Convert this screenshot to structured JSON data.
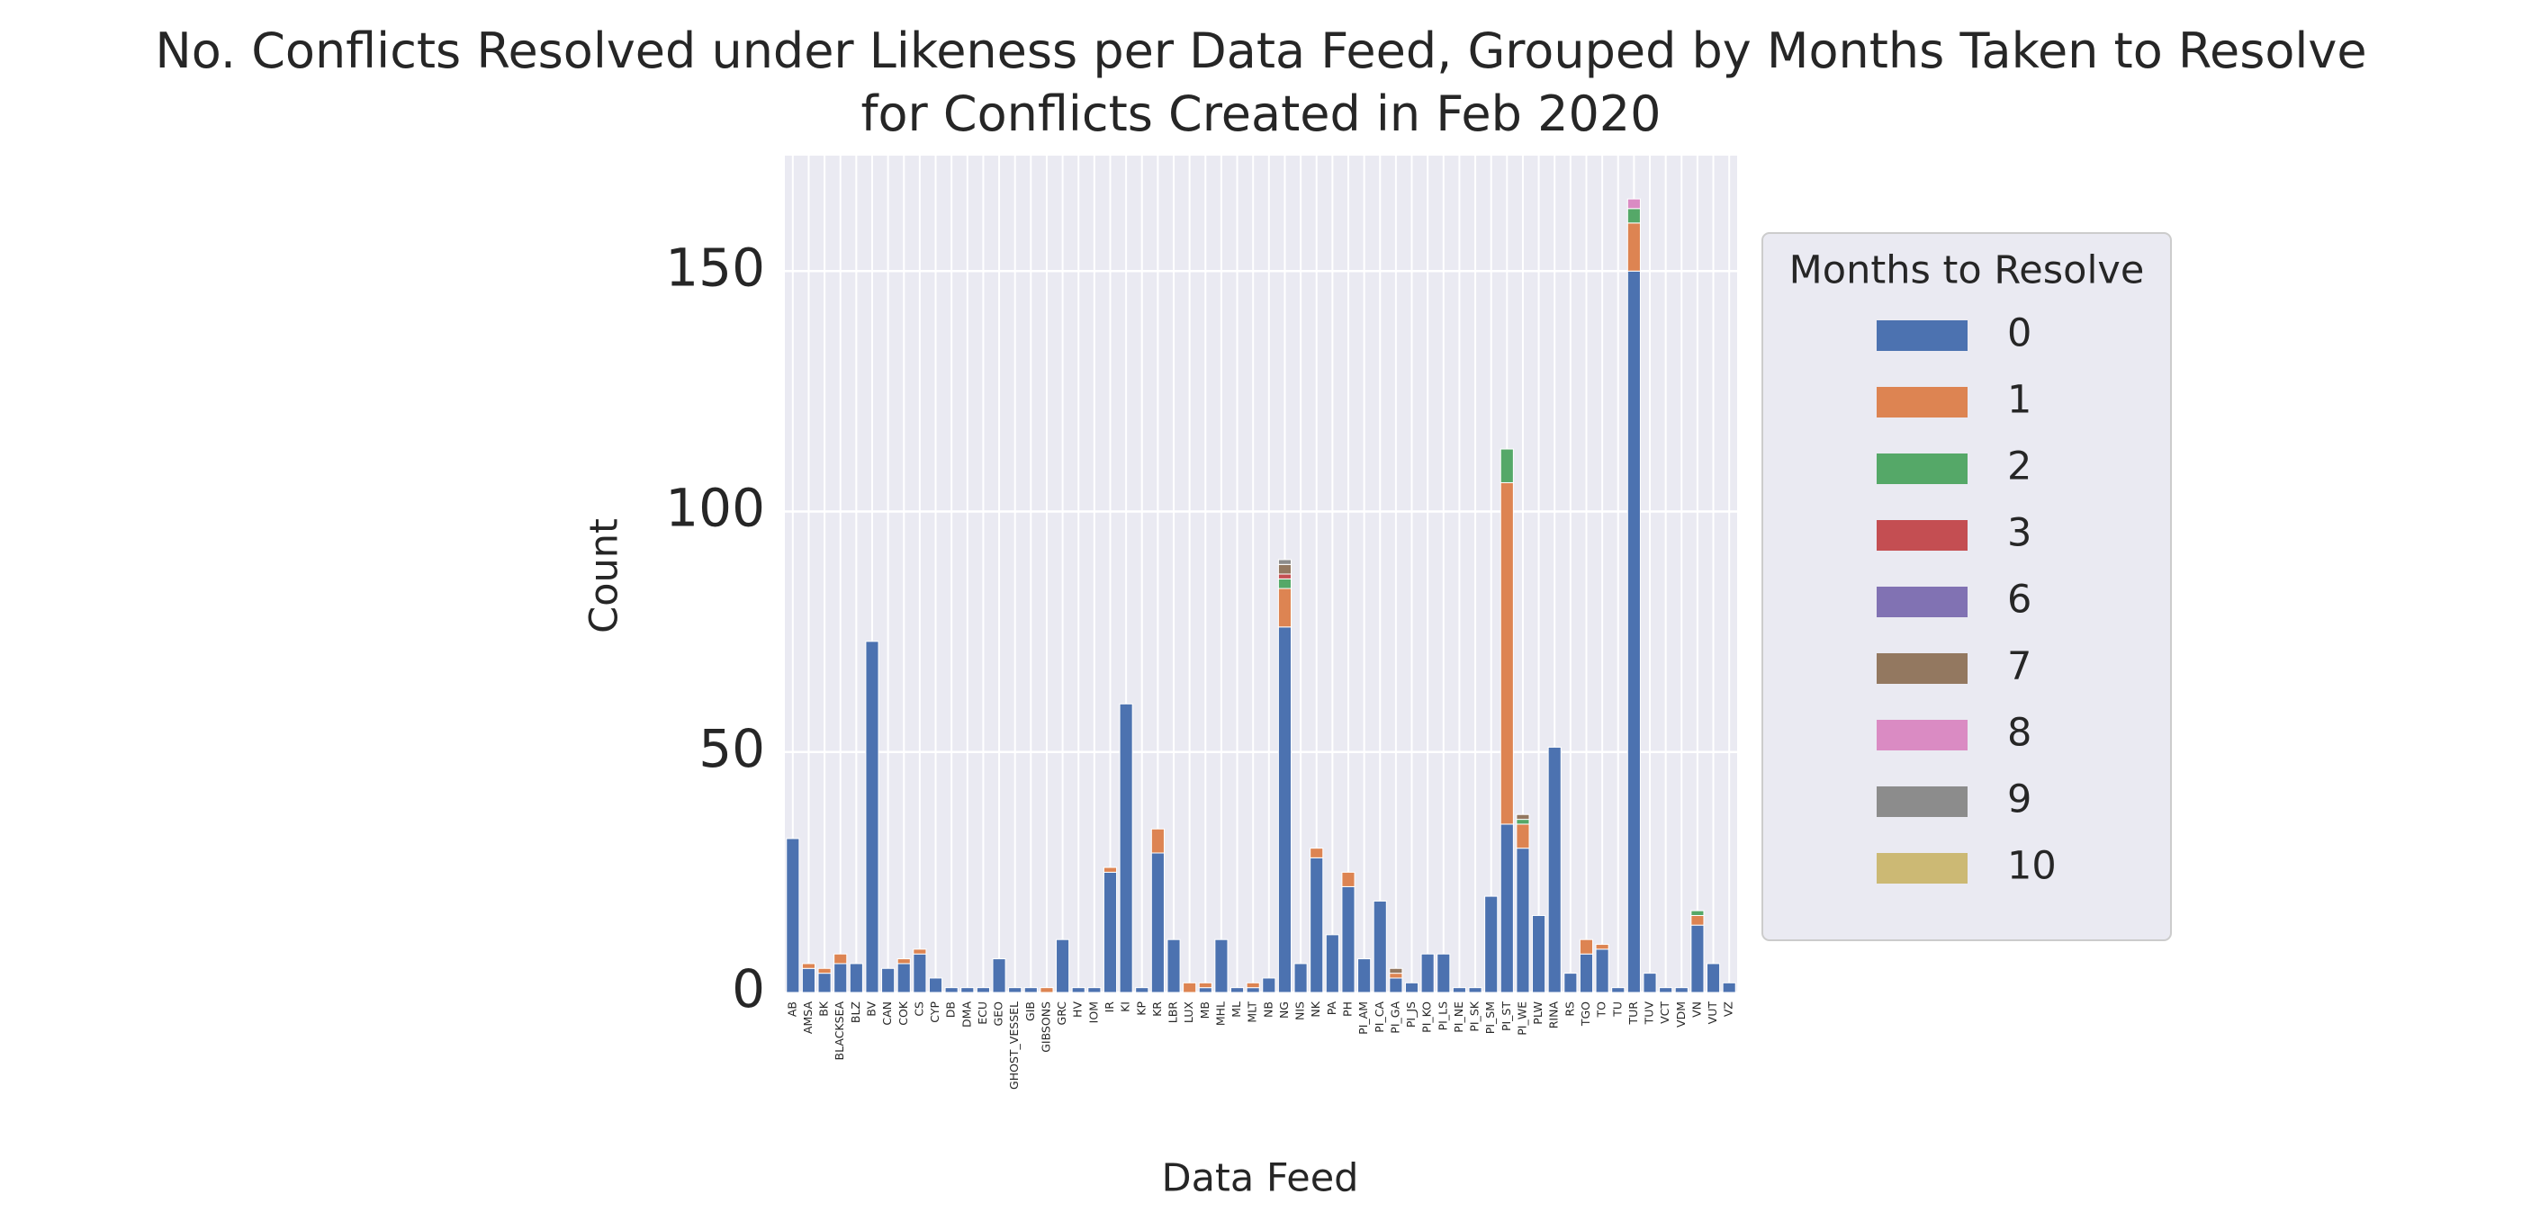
{
  "chart_data": {
    "type": "stacked_bar",
    "title": "No. Conflicts Resolved under Likeness per Data Feed, Grouped by Months Taken to Resolve\nfor Conflicts Created in Feb 2020",
    "x_label": "Data Feed",
    "y_label": "Count",
    "legend_title": "Months to Resolve",
    "legend_position": "outside right",
    "grid": true,
    "ylim": [
      0,
      174
    ],
    "yticks": [
      0,
      50,
      100,
      150
    ],
    "categories": [
      "AB",
      "AMSA",
      "BK",
      "BLACKSEA",
      "BLZ",
      "BV",
      "CAN",
      "COK",
      "CS",
      "CYP",
      "DB",
      "DMA",
      "ECU",
      "GEO",
      "GHOST_VESSEL",
      "GIB",
      "GIBSONS",
      "GRC",
      "HV",
      "IOM",
      "IR",
      "KI",
      "KP",
      "KR",
      "LBR",
      "LUX",
      "MB",
      "MHL",
      "ML",
      "MLT",
      "NB",
      "NG",
      "NIS",
      "NK",
      "PA",
      "PH",
      "PI_AM",
      "PI_CA",
      "PI_GA",
      "PI_JS",
      "PI_KO",
      "PI_LS",
      "PI_NE",
      "PI_SK",
      "PI_SM",
      "PI_ST",
      "PI_WE",
      "PLW",
      "RINA",
      "RS",
      "TGO",
      "TO",
      "TU",
      "TUR",
      "TUV",
      "VCT",
      "VDM",
      "VN",
      "VUT",
      "VZ"
    ],
    "series": [
      {
        "name": "0",
        "color": "#4c72b0",
        "values": [
          32,
          5,
          4,
          6,
          6,
          73,
          5,
          6,
          8,
          3,
          1,
          1,
          1,
          7,
          1,
          1,
          0,
          11,
          1,
          1,
          25,
          60,
          1,
          29,
          11,
          0,
          1,
          11,
          1,
          1,
          3,
          76,
          6,
          28,
          12,
          22,
          7,
          19,
          3,
          2,
          8,
          8,
          1,
          1,
          20,
          35,
          30,
          16,
          51,
          4,
          8,
          9,
          1,
          150,
          4,
          1,
          1,
          14,
          6,
          2
        ]
      },
      {
        "name": "1",
        "color": "#dd8452",
        "values": [
          0,
          1,
          1,
          2,
          0,
          0,
          0,
          1,
          1,
          0,
          0,
          0,
          0,
          0,
          0,
          0,
          1,
          0,
          0,
          0,
          1,
          0,
          0,
          5,
          0,
          2,
          1,
          0,
          0,
          1,
          0,
          8,
          0,
          2,
          0,
          3,
          0,
          0,
          1,
          0,
          0,
          0,
          0,
          0,
          0,
          71,
          5,
          0,
          0,
          0,
          3,
          1,
          0,
          10,
          0,
          0,
          0,
          2,
          0,
          0
        ]
      },
      {
        "name": "2",
        "color": "#55a868",
        "values": [
          0,
          0,
          0,
          0,
          0,
          0,
          0,
          0,
          0,
          0,
          0,
          0,
          0,
          0,
          0,
          0,
          0,
          0,
          0,
          0,
          0,
          0,
          0,
          0,
          0,
          0,
          0,
          0,
          0,
          0,
          0,
          2,
          0,
          0,
          0,
          0,
          0,
          0,
          0,
          0,
          0,
          0,
          0,
          0,
          0,
          7,
          1,
          0,
          0,
          0,
          0,
          0,
          0,
          3,
          0,
          0,
          0,
          1,
          0,
          0
        ]
      },
      {
        "name": "3",
        "color": "#c44e52",
        "values": [
          0,
          0,
          0,
          0,
          0,
          0,
          0,
          0,
          0,
          0,
          0,
          0,
          0,
          0,
          0,
          0,
          0,
          0,
          0,
          0,
          0,
          0,
          0,
          0,
          0,
          0,
          0,
          0,
          0,
          0,
          0,
          1,
          0,
          0,
          0,
          0,
          0,
          0,
          0,
          0,
          0,
          0,
          0,
          0,
          0,
          0,
          0,
          0,
          0,
          0,
          0,
          0,
          0,
          0,
          0,
          0,
          0,
          0,
          0,
          0
        ]
      },
      {
        "name": "6",
        "color": "#8172b3",
        "values": [
          0,
          0,
          0,
          0,
          0,
          0,
          0,
          0,
          0,
          0,
          0,
          0,
          0,
          0,
          0,
          0,
          0,
          0,
          0,
          0,
          0,
          0,
          0,
          0,
          0,
          0,
          0,
          0,
          0,
          0,
          0,
          0,
          0,
          0,
          0,
          0,
          0,
          0,
          0,
          0,
          0,
          0,
          0,
          0,
          0,
          0,
          0,
          0,
          0,
          0,
          0,
          0,
          0,
          0,
          0,
          0,
          0,
          0,
          0,
          0
        ]
      },
      {
        "name": "7",
        "color": "#937860",
        "values": [
          0,
          0,
          0,
          0,
          0,
          0,
          0,
          0,
          0,
          0,
          0,
          0,
          0,
          0,
          0,
          0,
          0,
          0,
          0,
          0,
          0,
          0,
          0,
          0,
          0,
          0,
          0,
          0,
          0,
          0,
          0,
          2,
          0,
          0,
          0,
          0,
          0,
          0,
          1,
          0,
          0,
          0,
          0,
          0,
          0,
          0,
          1,
          0,
          0,
          0,
          0,
          0,
          0,
          0,
          0,
          0,
          0,
          0,
          0,
          0
        ]
      },
      {
        "name": "8",
        "color": "#da8bc3",
        "values": [
          0,
          0,
          0,
          0,
          0,
          0,
          0,
          0,
          0,
          0,
          0,
          0,
          0,
          0,
          0,
          0,
          0,
          0,
          0,
          0,
          0,
          0,
          0,
          0,
          0,
          0,
          0,
          0,
          0,
          0,
          0,
          0,
          0,
          0,
          0,
          0,
          0,
          0,
          0,
          0,
          0,
          0,
          0,
          0,
          0,
          0,
          0,
          0,
          0,
          0,
          0,
          0,
          0,
          2,
          0,
          0,
          0,
          0,
          0,
          0
        ]
      },
      {
        "name": "9",
        "color": "#8c8c8c",
        "values": [
          0,
          0,
          0,
          0,
          0,
          0,
          0,
          0,
          0,
          0,
          0,
          0,
          0,
          0,
          0,
          0,
          0,
          0,
          0,
          0,
          0,
          0,
          0,
          0,
          0,
          0,
          0,
          0,
          0,
          0,
          0,
          1,
          0,
          0,
          0,
          0,
          0,
          0,
          0,
          0,
          0,
          0,
          0,
          0,
          0,
          0,
          0,
          0,
          0,
          0,
          0,
          0,
          0,
          0,
          0,
          0,
          0,
          0,
          0,
          0
        ]
      },
      {
        "name": "10",
        "color": "#ccb974",
        "values": [
          0,
          0,
          0,
          0,
          0,
          0,
          0,
          0,
          0,
          0,
          0,
          0,
          0,
          0,
          0,
          0,
          0,
          0,
          0,
          0,
          0,
          0,
          0,
          0,
          0,
          0,
          0,
          0,
          0,
          0,
          0,
          0,
          0,
          0,
          0,
          0,
          0,
          0,
          0,
          0,
          0,
          0,
          0,
          0,
          0,
          0,
          0,
          0,
          0,
          0,
          0,
          0,
          0,
          0,
          0,
          0,
          0,
          0,
          0,
          0
        ]
      }
    ]
  }
}
